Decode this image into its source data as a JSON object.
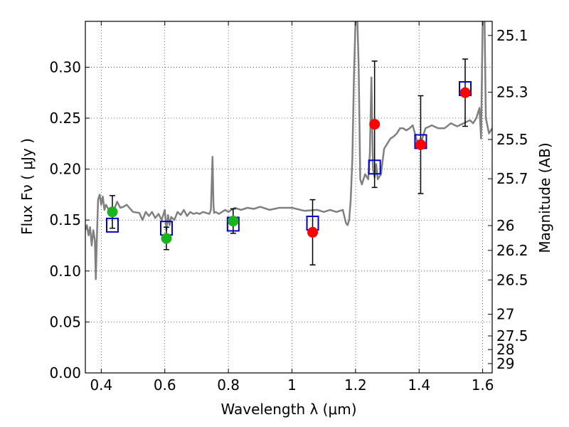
{
  "chart_data": {
    "type": "scatter",
    "xlabel": "Wavelength  λ (μm)",
    "ylabel": "Flux  Fν  ( μJy )",
    "ylabel_right": "Magnitude (AB)",
    "xlim": [
      0.35,
      1.63
    ],
    "ylim": [
      0.0,
      0.345
    ],
    "grid": true,
    "x_ticks": [
      {
        "value": 0.4,
        "label": "0.4"
      },
      {
        "value": 0.6,
        "label": "0.6"
      },
      {
        "value": 0.8,
        "label": "0.8"
      },
      {
        "value": 1.0,
        "label": "1"
      },
      {
        "value": 1.2,
        "label": "1.2"
      },
      {
        "value": 1.4,
        "label": "1.4"
      },
      {
        "value": 1.6,
        "label": "1.6"
      }
    ],
    "y_ticks": [
      {
        "value": 0.0,
        "label": "0.00"
      },
      {
        "value": 0.05,
        "label": "0.05"
      },
      {
        "value": 0.1,
        "label": "0.10"
      },
      {
        "value": 0.15,
        "label": "0.15"
      },
      {
        "value": 0.2,
        "label": "0.20"
      },
      {
        "value": 0.25,
        "label": "0.25"
      },
      {
        "value": 0.3,
        "label": "0.30"
      }
    ],
    "mag_ticks": [
      {
        "value": 25.1,
        "label": "25.1"
      },
      {
        "value": 25.3,
        "label": "25.3"
      },
      {
        "value": 25.5,
        "label": "25.5"
      },
      {
        "value": 25.7,
        "label": "25.7"
      },
      {
        "value": 26.0,
        "label": "26"
      },
      {
        "value": 26.2,
        "label": "26.2"
      },
      {
        "value": 26.5,
        "label": "26.5"
      },
      {
        "value": 27.0,
        "label": "27"
      },
      {
        "value": 27.5,
        "label": "27.5"
      },
      {
        "value": 28.0,
        "label": "28"
      },
      {
        "value": 29.0,
        "label": "29"
      }
    ],
    "template_spectrum": {
      "color": "#808080",
      "x": [
        0.35,
        0.355,
        0.36,
        0.365,
        0.37,
        0.375,
        0.38,
        0.383,
        0.386,
        0.39,
        0.395,
        0.4,
        0.405,
        0.41,
        0.415,
        0.42,
        0.43,
        0.44,
        0.45,
        0.46,
        0.47,
        0.48,
        0.5,
        0.52,
        0.53,
        0.54,
        0.55,
        0.56,
        0.57,
        0.58,
        0.59,
        0.6,
        0.605,
        0.61,
        0.615,
        0.62,
        0.63,
        0.64,
        0.65,
        0.66,
        0.67,
        0.68,
        0.69,
        0.7,
        0.71,
        0.72,
        0.73,
        0.74,
        0.745,
        0.75,
        0.753,
        0.755,
        0.76,
        0.77,
        0.78,
        0.79,
        0.8,
        0.82,
        0.84,
        0.86,
        0.88,
        0.9,
        0.93,
        0.96,
        1.0,
        1.04,
        1.08,
        1.1,
        1.12,
        1.14,
        1.16,
        1.17,
        1.175,
        1.18,
        1.185,
        1.19,
        1.195,
        1.2,
        1.203,
        1.206,
        1.21,
        1.215,
        1.22,
        1.23,
        1.24,
        1.245,
        1.25,
        1.255,
        1.26,
        1.265,
        1.27,
        1.28,
        1.29,
        1.3,
        1.31,
        1.32,
        1.33,
        1.34,
        1.35,
        1.36,
        1.37,
        1.38,
        1.4,
        1.42,
        1.44,
        1.46,
        1.48,
        1.5,
        1.52,
        1.54,
        1.56,
        1.57,
        1.58,
        1.59,
        1.595,
        1.6,
        1.603,
        1.606,
        1.61,
        1.62,
        1.63
      ],
      "y": [
        0.14,
        0.145,
        0.135,
        0.143,
        0.125,
        0.14,
        0.13,
        0.092,
        0.13,
        0.17,
        0.175,
        0.165,
        0.173,
        0.16,
        0.165,
        0.162,
        0.158,
        0.16,
        0.168,
        0.162,
        0.163,
        0.165,
        0.158,
        0.157,
        0.15,
        0.158,
        0.154,
        0.158,
        0.152,
        0.156,
        0.15,
        0.16,
        0.14,
        0.155,
        0.145,
        0.153,
        0.15,
        0.158,
        0.155,
        0.16,
        0.154,
        0.158,
        0.156,
        0.157,
        0.156,
        0.158,
        0.157,
        0.156,
        0.16,
        0.212,
        0.165,
        0.157,
        0.158,
        0.156,
        0.158,
        0.16,
        0.158,
        0.162,
        0.16,
        0.162,
        0.161,
        0.163,
        0.16,
        0.162,
        0.162,
        0.159,
        0.16,
        0.158,
        0.16,
        0.158,
        0.16,
        0.147,
        0.145,
        0.15,
        0.17,
        0.21,
        0.29,
        0.345,
        0.345,
        0.345,
        0.3,
        0.19,
        0.185,
        0.195,
        0.19,
        0.215,
        0.29,
        0.2,
        0.192,
        0.205,
        0.19,
        0.195,
        0.22,
        0.225,
        0.23,
        0.232,
        0.235,
        0.24,
        0.24,
        0.238,
        0.24,
        0.243,
        0.22,
        0.24,
        0.243,
        0.24,
        0.24,
        0.245,
        0.242,
        0.245,
        0.248,
        0.245,
        0.25,
        0.26,
        0.23,
        0.345,
        0.345,
        0.345,
        0.25,
        0.235,
        0.24
      ]
    },
    "series": [
      {
        "marker": "square",
        "color": "#0000cc",
        "x": [
          0.435,
          0.605,
          0.815,
          1.065,
          1.26,
          1.405,
          1.545
        ],
        "y": [
          0.145,
          0.142,
          0.146,
          0.147,
          0.202,
          0.227,
          0.279
        ]
      },
      {
        "marker": "circle",
        "color": "#1bb31b",
        "x": [
          0.435,
          0.605,
          0.815
        ],
        "y": [
          0.158,
          0.132,
          0.149
        ],
        "yerr": [
          0.016,
          0.011,
          0.012
        ]
      },
      {
        "marker": "circle",
        "color": "#ff0000",
        "x": [
          1.065,
          1.26,
          1.405,
          1.545
        ],
        "y": [
          0.138,
          0.244,
          0.224,
          0.275
        ],
        "yerr": [
          0.032,
          0.062,
          0.048,
          0.033
        ]
      }
    ]
  }
}
